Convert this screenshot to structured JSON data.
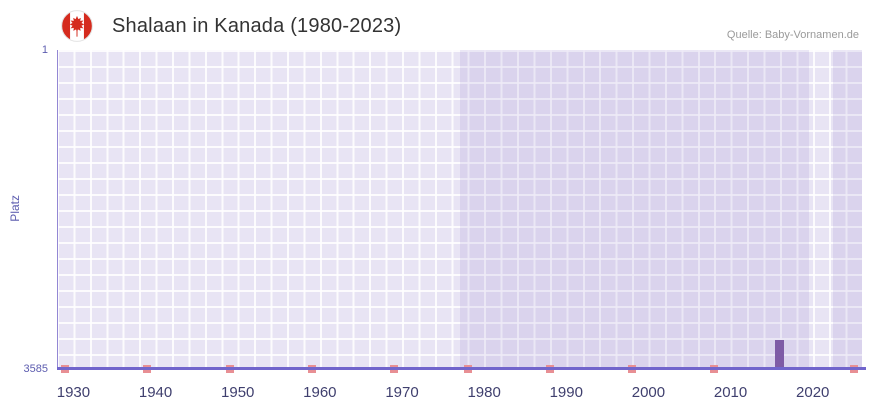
{
  "header": {
    "flag_icon": "canada-flag",
    "title": "Shalaan in Kanada (1980-2023)",
    "source": "Quelle: Baby-Vornamen.de"
  },
  "chart_data": {
    "type": "bar",
    "title": "Shalaan in Kanada (1980-2023)",
    "xlabel": "",
    "ylabel": "Platz",
    "y_axis": {
      "direction": "inverted",
      "top_tick": "1",
      "bottom_tick": "3585",
      "ylim": [
        1,
        3585
      ]
    },
    "x_domain": [
      1928,
      2026
    ],
    "x_ticks": [
      "1930",
      "1940",
      "1950",
      "1960",
      "1970",
      "1980",
      "1990",
      "2000",
      "2010",
      "2020"
    ],
    "grid": true,
    "legend": false,
    "bars": [
      {
        "year": 2016,
        "rank": 3250
      }
    ],
    "bar_width_years": 1.1,
    "unranked_marker_years": [
      1929,
      1939,
      1949,
      1959,
      1969,
      1978,
      1988,
      1998,
      2008,
      2025
    ],
    "shade_bands": [
      {
        "from": 1977,
        "to": 2019.5
      },
      {
        "from": 2022.5,
        "to": 2026
      }
    ],
    "colors": {
      "bar": "#7e5ba6",
      "baseline": "#7165cc",
      "axis_line": "#9387d4",
      "plot_bg": "#e8e4f4",
      "grid_line": "rgba(255,255,255,0.85)",
      "shade_band": "rgba(123,104,196,0.13)",
      "marker": "#e88f94",
      "y_text": "#5c5caf",
      "x_text": "#3f3f6e",
      "title_text": "#333333",
      "source_text": "#9a9a9a"
    }
  }
}
